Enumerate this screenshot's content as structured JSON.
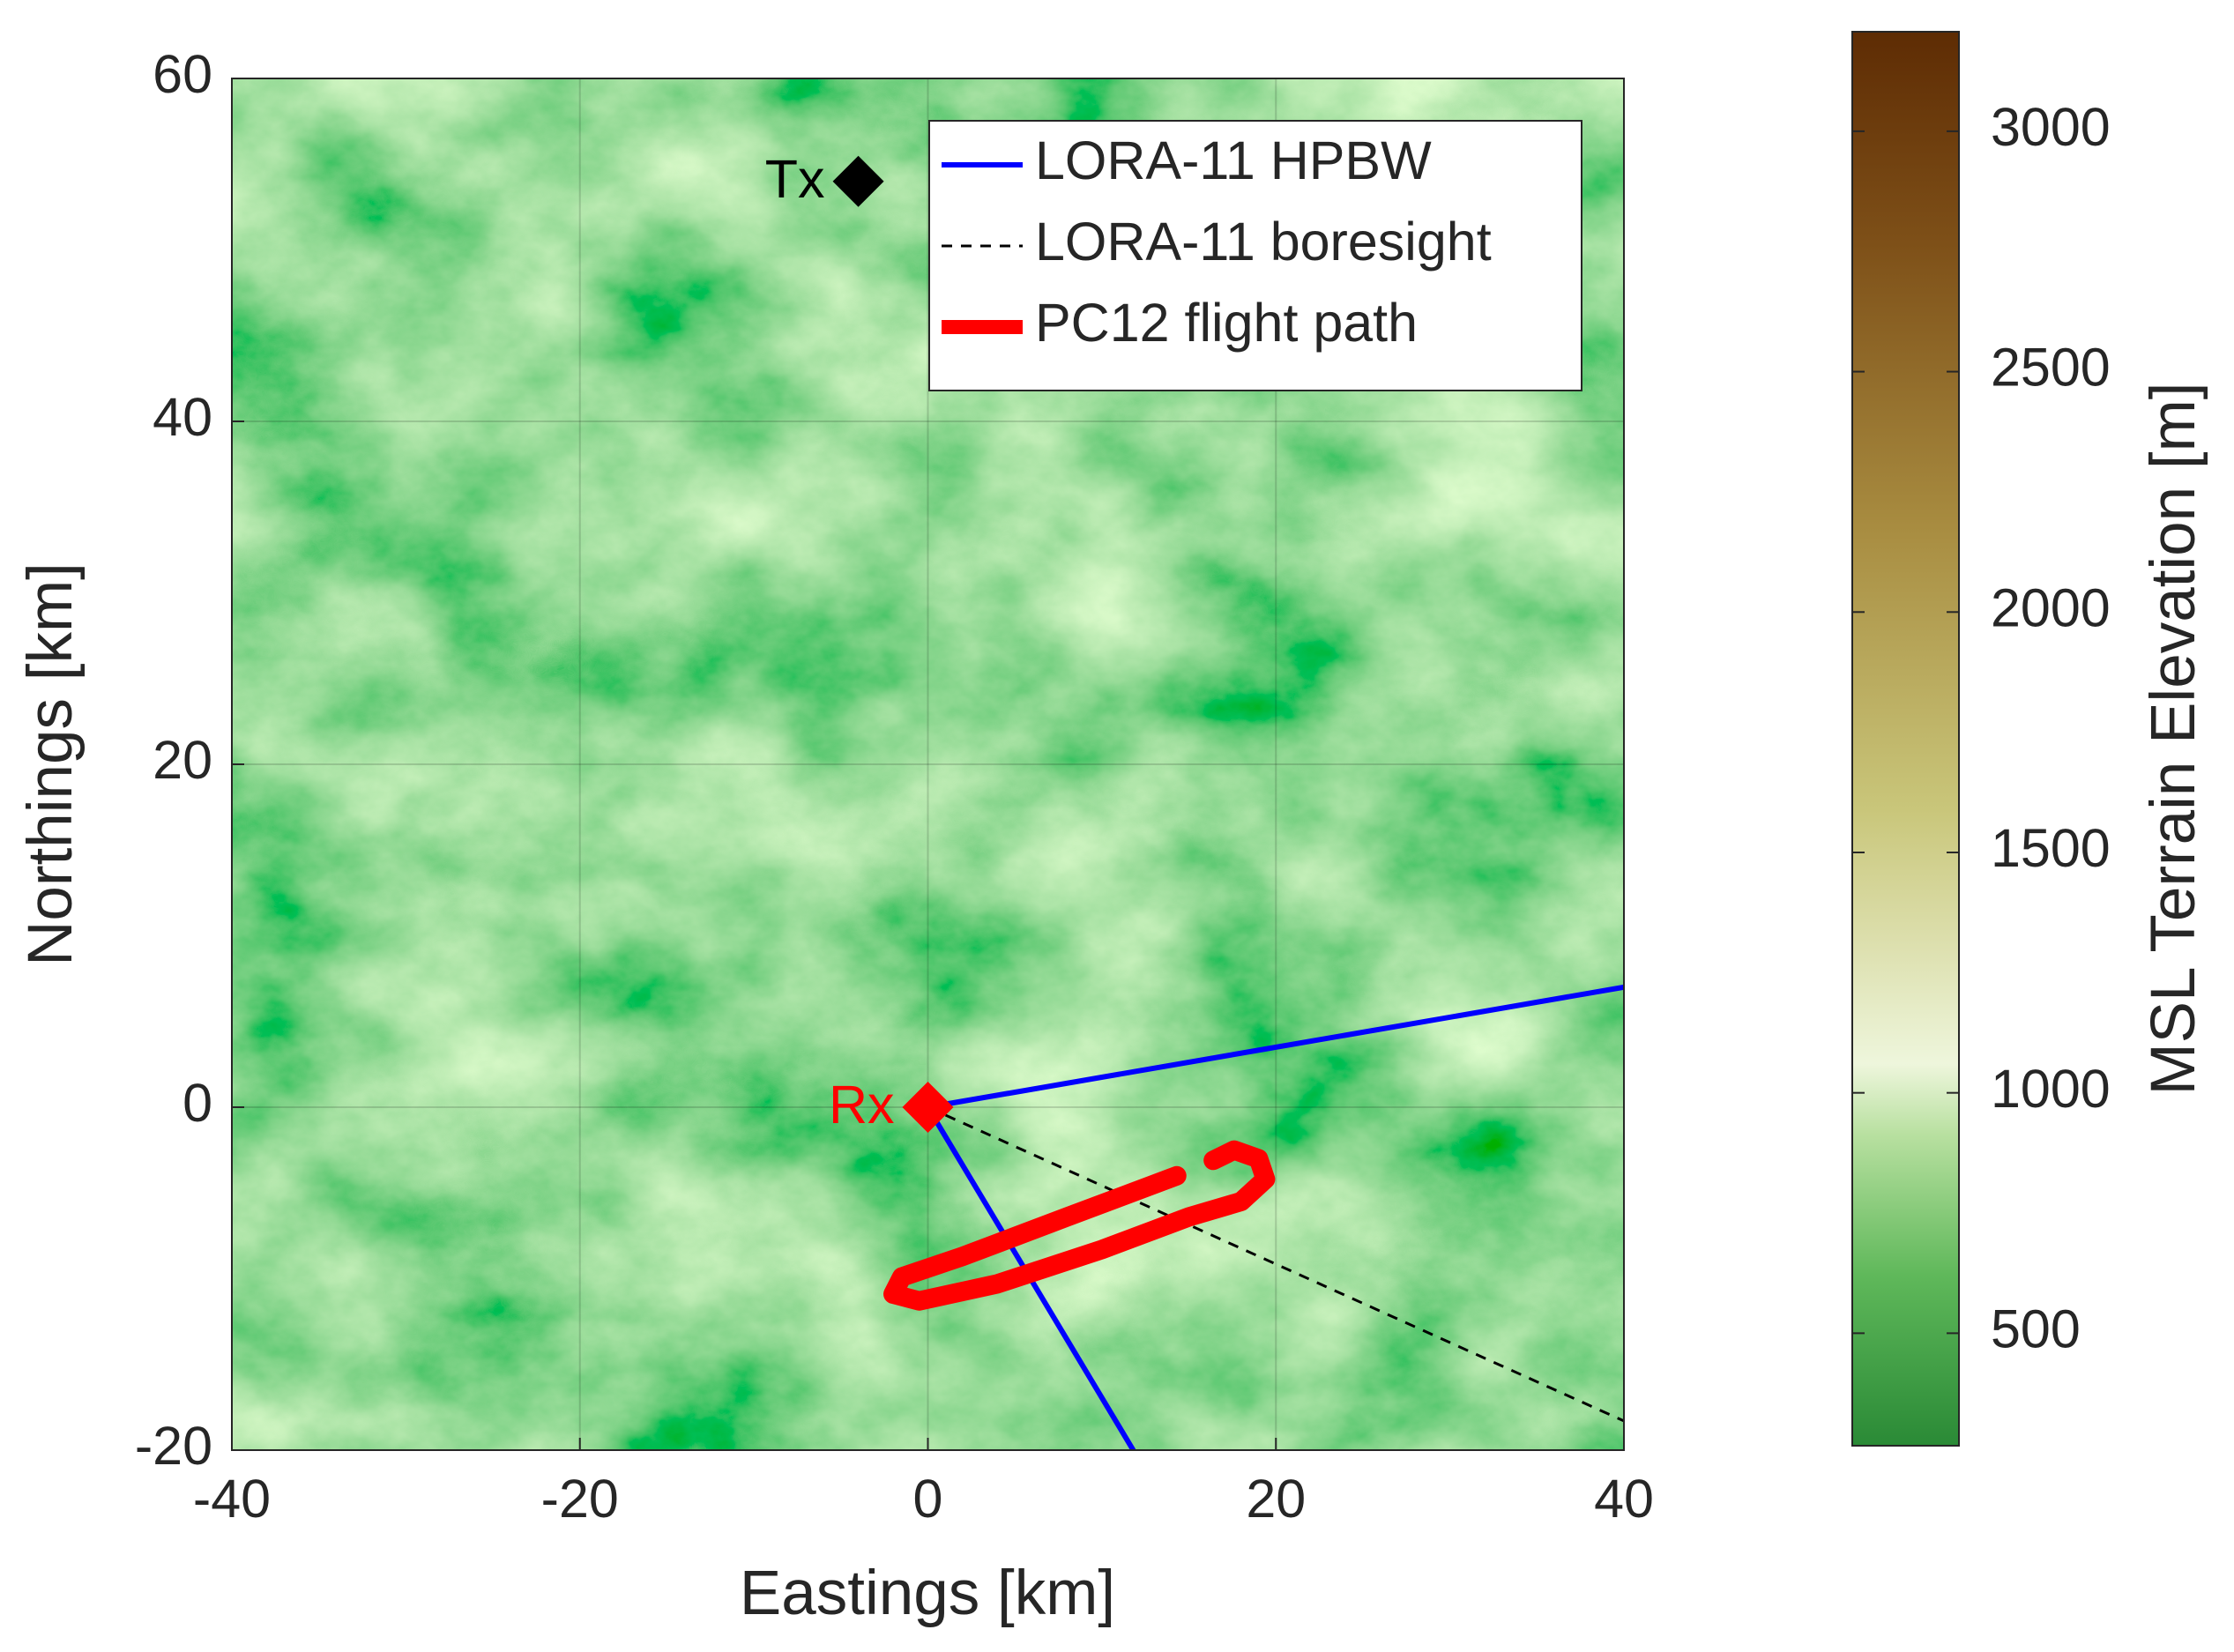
{
  "chart_data": {
    "type": "line",
    "xlabel": "Eastings [km]",
    "ylabel": "Northings [km]",
    "xlim": [
      -40,
      40
    ],
    "ylim": [
      -20,
      60
    ],
    "xticks": [
      -40,
      -20,
      0,
      20,
      40
    ],
    "yticks": [
      -20,
      0,
      20,
      40,
      60
    ],
    "grid": true,
    "legend": "upper right",
    "series": [
      {
        "name": "LORA-11 HPBW",
        "color": "#0000ff",
        "style": "solid",
        "x": [
          40,
          0,
          11.8
        ],
        "y": [
          7,
          0,
          -20
        ]
      },
      {
        "name": "LORA-11 boresight",
        "color": "#000000",
        "style": "dashed",
        "x": [
          0,
          40
        ],
        "y": [
          0,
          -18.3
        ]
      },
      {
        "name": "PC12 flight path",
        "color": "#ff0000",
        "style": "thick",
        "x": [
          14.3,
          8,
          2,
          -1.5,
          -2,
          -0.5,
          4,
          10,
          15,
          18,
          19.4,
          19,
          17.6,
          16.4
        ],
        "y": [
          -4,
          -6.4,
          -8.7,
          -9.9,
          -10.9,
          -11.3,
          -10.3,
          -8.3,
          -6.4,
          -5.5,
          -4.2,
          -3,
          -2.5,
          -3.1
        ]
      }
    ],
    "points": [
      {
        "label": "Tx",
        "x": -4,
        "y": 54,
        "color": "#000000"
      },
      {
        "label": "Rx",
        "x": 0,
        "y": 0,
        "color": "#ff0000"
      }
    ],
    "colorbar": {
      "label": "MSL Terrain Elevation [m]",
      "lim": [
        266,
        3207
      ],
      "ticks": [
        500,
        1000,
        1500,
        2000,
        2500,
        3000
      ]
    }
  }
}
